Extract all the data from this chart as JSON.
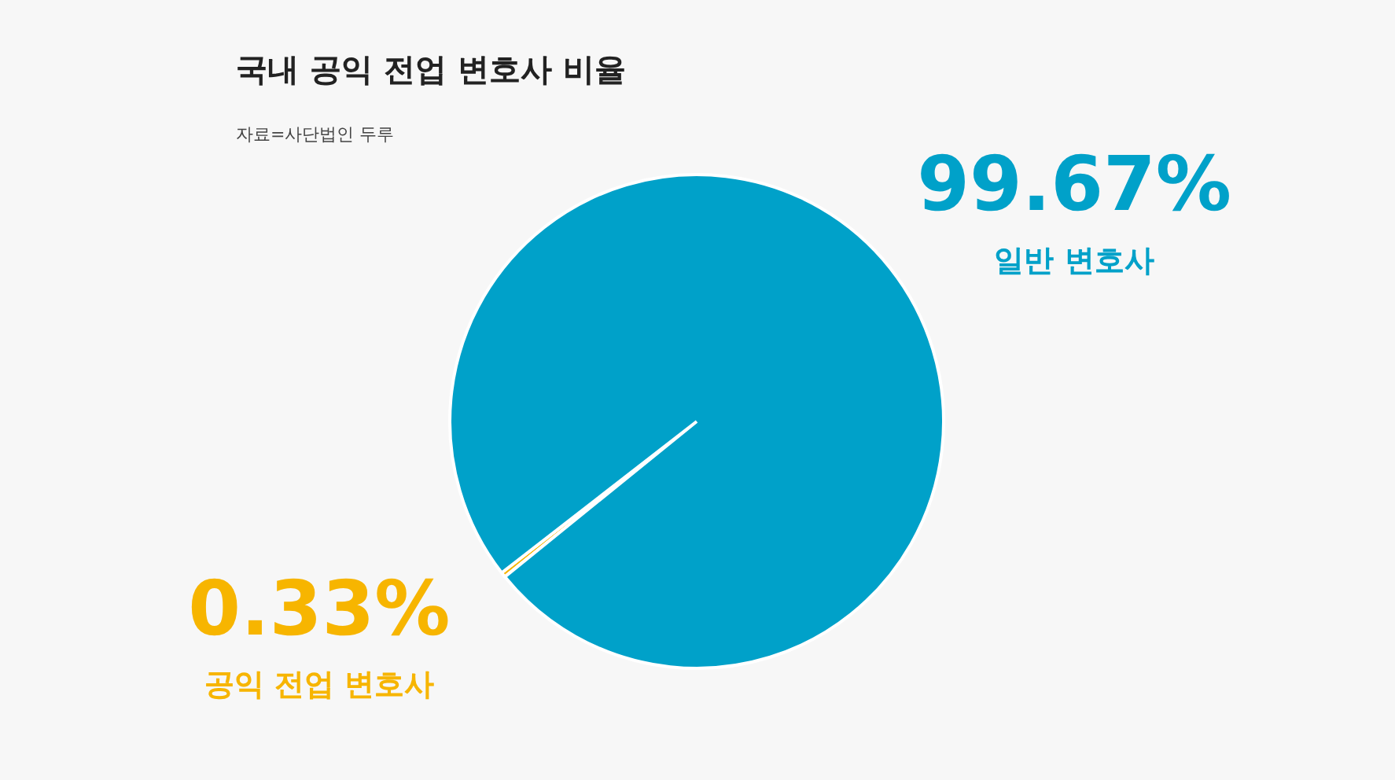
{
  "chart_data": {
    "type": "pie",
    "title": "국내 공익 전업 변호사 비율",
    "categories": [
      "공익 전업 변호사",
      "일반 변호사"
    ],
    "values": [
      0.33,
      99.67
    ],
    "value_labels": [
      "0.33%",
      "99.67%"
    ],
    "colors": [
      "#f7b500",
      "#00a1c9"
    ],
    "annotations": [
      "자료=사단법인 두루"
    ],
    "legend": false
  }
}
